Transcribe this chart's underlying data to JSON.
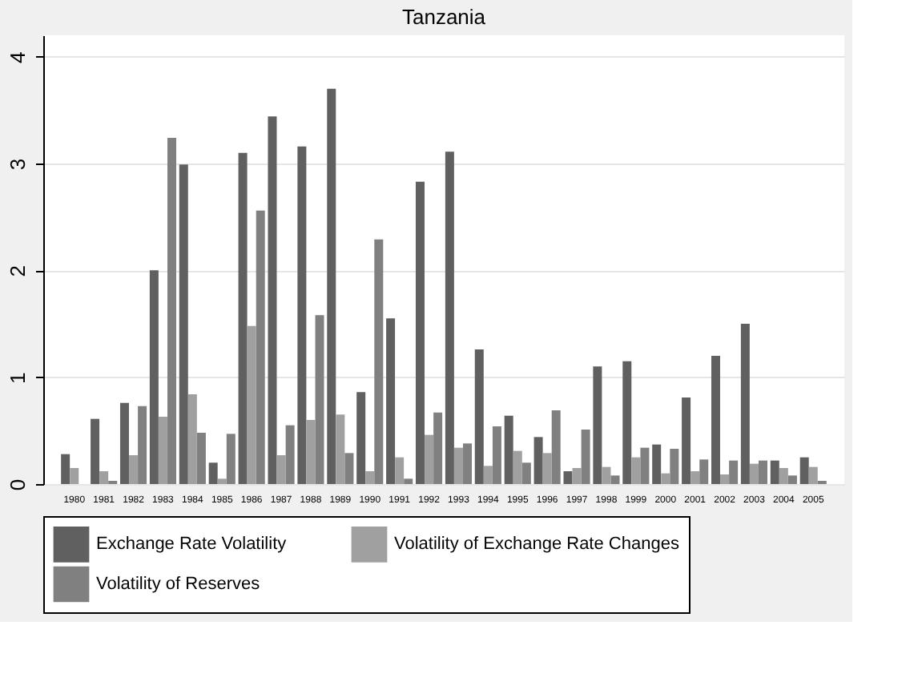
{
  "chart_data": {
    "type": "bar",
    "title": "Tanzania",
    "categories": [
      "1980",
      "1981",
      "1982",
      "1983",
      "1984",
      "1985",
      "1986",
      "1987",
      "1988",
      "1989",
      "1990",
      "1991",
      "1992",
      "1993",
      "1994",
      "1995",
      "1996",
      "1997",
      "1998",
      "1999",
      "2000",
      "2001",
      "2002",
      "2003",
      "2004",
      "2005"
    ],
    "series": [
      {
        "name": "Exchange Rate Volatility",
        "color": "#606060",
        "values": [
          0.28,
          0.61,
          0.76,
          2.0,
          2.99,
          0.2,
          3.1,
          3.44,
          3.16,
          3.7,
          0.86,
          1.55,
          2.83,
          3.11,
          1.26,
          0.64,
          0.44,
          0.12,
          1.1,
          1.15,
          0.37,
          0.81,
          1.2,
          1.5,
          0.22,
          0.25
        ]
      },
      {
        "name": "Volatility of Exchange Rate Changes",
        "color": "#a0a0a0",
        "values": [
          0.15,
          0.12,
          0.27,
          0.63,
          0.84,
          0.05,
          1.48,
          0.27,
          0.6,
          0.65,
          0.12,
          0.25,
          0.46,
          0.34,
          0.17,
          0.31,
          0.29,
          0.15,
          0.16,
          0.25,
          0.1,
          0.12,
          0.09,
          0.19,
          0.15,
          0.16
        ]
      },
      {
        "name": "Volatility of Reserves",
        "color": "#808080",
        "values": [
          0,
          0.03,
          0.73,
          3.24,
          0.48,
          0.47,
          2.56,
          0.55,
          1.58,
          0.29,
          2.29,
          0.05,
          0.67,
          0.38,
          0.54,
          0.2,
          0.69,
          0.51,
          0.08,
          0.34,
          0.33,
          0.23,
          0.22,
          0.22,
          0.08,
          0.03
        ]
      }
    ],
    "ylim": [
      0,
      4.2
    ],
    "yticks": [
      0,
      1,
      2,
      3,
      4
    ],
    "grid": "y",
    "legend": "bottom"
  }
}
